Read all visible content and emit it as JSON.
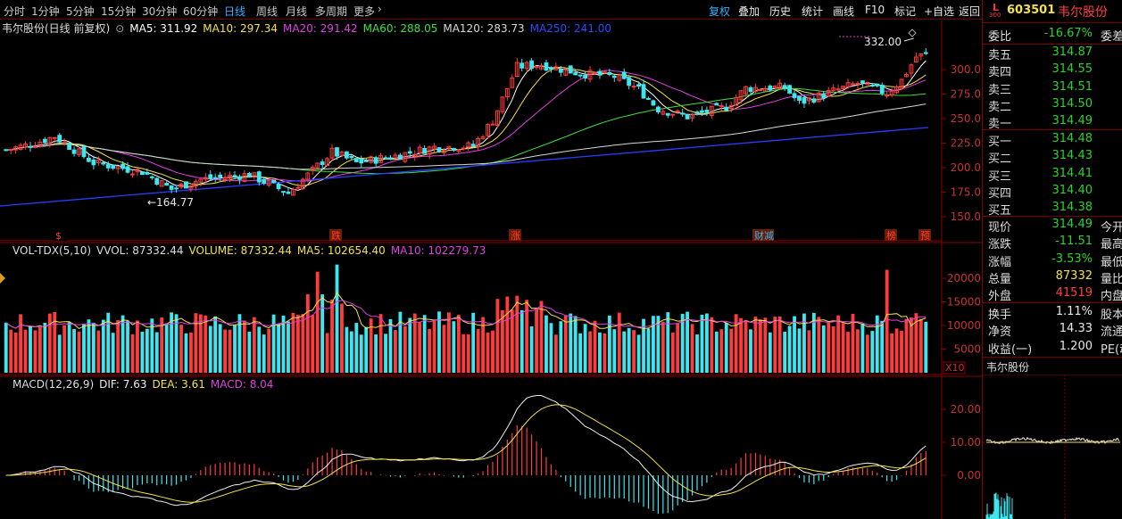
{
  "periods": [
    "分时",
    "1分钟",
    "5分钟",
    "15分钟",
    "30分钟",
    "60分钟",
    "日线",
    "周线",
    "月线",
    "多周期",
    "更多"
  ],
  "toolbar": [
    "复权",
    "叠加",
    "历史",
    "统计",
    "画线",
    "F10",
    "标记",
    "+自选",
    "返回"
  ],
  "main_panel": {
    "title": "韦尔股份(日线 前复权)",
    "mas": [
      {
        "label": "MA5: 311.92",
        "color": "#ffffff"
      },
      {
        "label": "MA10: 297.34",
        "color": "#f3e14b"
      },
      {
        "label": "MA20: 291.42",
        "color": "#e040e0"
      },
      {
        "label": "MA60: 288.05",
        "color": "#3fe03f"
      },
      {
        "label": "MA120: 283.73",
        "color": "#d8d8d8"
      },
      {
        "label": "MA250: 241.00",
        "color": "#2a4dff"
      }
    ],
    "yticks": [
      "300.0",
      "275.0",
      "250.0",
      "225.0",
      "200.0",
      "175.0",
      "150.0"
    ],
    "high_label": "332.00",
    "low_label": "164.77",
    "event_markers": [
      "$",
      "跌",
      "涨",
      "财减",
      "榜",
      "预"
    ]
  },
  "vol_panel": {
    "labels": [
      {
        "label": "VOL-TDX(5,10)",
        "color": "#dddddd"
      },
      {
        "label": "VVOL: 87332.44",
        "color": "#dddddd"
      },
      {
        "label": "VOLUME: 87332.44",
        "color": "#f3e14b"
      },
      {
        "label": "MA5: 102654.40",
        "color": "#f3e14b"
      },
      {
        "label": "MA10: 102279.73",
        "color": "#e040e0"
      }
    ],
    "yticks": [
      "20000",
      "15000",
      "10000",
      "5000"
    ],
    "unit": "X10"
  },
  "macd_panel": {
    "labels": [
      {
        "label": "MACD(12,26,9)",
        "color": "#dddddd"
      },
      {
        "label": "DIF: 7.63",
        "color": "#eeeeee"
      },
      {
        "label": "DEA: 3.61",
        "color": "#f3e14b"
      },
      {
        "label": "MACD: 8.04",
        "color": "#e040e0"
      }
    ],
    "yticks": [
      "20.00",
      "10.00",
      "0.00"
    ]
  },
  "sidebar": {
    "tag": "L",
    "tag_sub": "300",
    "code": "603501",
    "name": "韦尔股份",
    "weibi": {
      "k": "委比",
      "v": "-16.67%",
      "k2": "委差"
    },
    "sells": [
      {
        "k": "卖五",
        "v": "314.87"
      },
      {
        "k": "卖四",
        "v": "314.55"
      },
      {
        "k": "卖三",
        "v": "314.51"
      },
      {
        "k": "卖二",
        "v": "314.50"
      },
      {
        "k": "卖一",
        "v": "314.49"
      }
    ],
    "buys": [
      {
        "k": "买一",
        "v": "314.48"
      },
      {
        "k": "买二",
        "v": "314.43"
      },
      {
        "k": "买三",
        "v": "314.41"
      },
      {
        "k": "买四",
        "v": "314.40"
      },
      {
        "k": "买五",
        "v": "314.38"
      }
    ],
    "stats": [
      {
        "k": "现价",
        "v": "314.49",
        "k2": "今开",
        "c": "grn"
      },
      {
        "k": "涨跌",
        "v": "-11.51",
        "k2": "最高",
        "c": "grn"
      },
      {
        "k": "涨幅",
        "v": "-3.53%",
        "k2": "最低",
        "c": "grn"
      },
      {
        "k": "总量",
        "v": "87332",
        "k2": "量比",
        "c": "yel"
      },
      {
        "k": "外盘",
        "v": "41519",
        "k2": "内盘",
        "c": "red"
      }
    ],
    "stats2": [
      {
        "k": "换手",
        "v": "1.11%",
        "k2": "股本",
        "c": "wht"
      },
      {
        "k": "净资",
        "v": "14.33",
        "k2": "流通",
        "c": "wht"
      },
      {
        "k": "收益(一)",
        "v": "1.200",
        "k2": "PE(动",
        "c": "wht"
      }
    ],
    "mini_title": "韦尔股份"
  }
}
